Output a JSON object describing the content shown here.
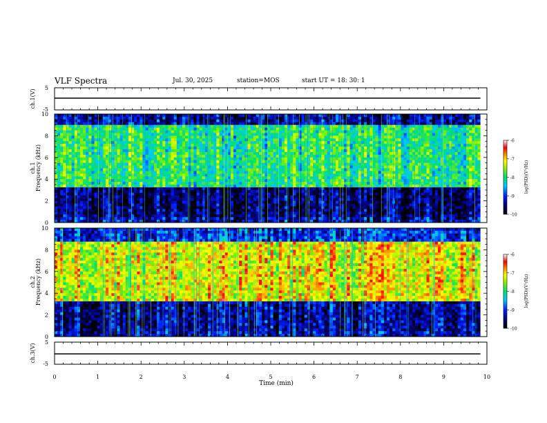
{
  "header": {
    "title": "VLF Spectra",
    "date": "Jul. 30, 2025",
    "station": "station=MOS",
    "start": "start UT =  18: 30: 1"
  },
  "chart_data": [
    {
      "type": "line",
      "panel": "ch1-voltage",
      "ylabel": "ch.1(V)",
      "ylim": [
        -5,
        5
      ],
      "yticks": [
        "5",
        "-5"
      ],
      "series": [
        {
          "name": "ch.1",
          "level": -0.2
        }
      ]
    },
    {
      "type": "heatmap",
      "panel": "ch1-spectrogram",
      "ylabel_top": "ch.1",
      "ylabel": "Frequency (kHz)",
      "ylim": [
        0,
        10
      ],
      "yticks": [
        "0",
        "2",
        "4",
        "6",
        "8",
        "10"
      ],
      "xlim": [
        0,
        9.85
      ],
      "description_bands": [
        {
          "fmin": 0,
          "fmax": 0.6,
          "level": -9.3
        },
        {
          "fmin": 0.6,
          "fmax": 3.2,
          "level": -9.6
        },
        {
          "fmin": 3.2,
          "fmax": 9.0,
          "level": -8.0
        },
        {
          "fmin": 9.0,
          "fmax": 10,
          "level": -9.4
        }
      ],
      "colorbar": {
        "label": "log(PSD)(V²/Hz)",
        "min": -10,
        "max": -6,
        "ticks": [
          "-6",
          "-7",
          "-8",
          "-9",
          "-10"
        ]
      }
    },
    {
      "type": "heatmap",
      "panel": "ch2-spectrogram",
      "ylabel_top": "ch.2",
      "ylabel": "Frequency (kHz)",
      "ylim": [
        0,
        10
      ],
      "yticks": [
        "0",
        "2",
        "4",
        "6",
        "8",
        "10"
      ],
      "xlim": [
        0,
        9.85
      ],
      "description_bands": [
        {
          "fmin": 0,
          "fmax": 0.6,
          "level": -9.3
        },
        {
          "fmin": 0.6,
          "fmax": 3.2,
          "level": -9.4
        },
        {
          "fmin": 3.2,
          "fmax": 8.8,
          "level": -7.2
        },
        {
          "fmin": 8.8,
          "fmax": 10,
          "level": -9.0
        }
      ],
      "colorbar": {
        "label": "log(PSD)(V²/Hz)",
        "min": -10,
        "max": -6,
        "ticks": [
          "-6",
          "-7",
          "-8",
          "-9",
          "-10"
        ]
      }
    },
    {
      "type": "line",
      "panel": "ch3-voltage",
      "ylabel": "ch.3(V)",
      "ylim": [
        -5,
        5
      ],
      "yticks": [
        "5",
        "-5"
      ],
      "series": [
        {
          "name": "ch.3",
          "level": -0.2
        }
      ]
    }
  ],
  "xaxis": {
    "label": "Time (min)",
    "range": [
      0,
      10
    ],
    "ticks": [
      "0",
      "1",
      "2",
      "3",
      "4",
      "5",
      "6",
      "7",
      "8",
      "9",
      "10"
    ]
  }
}
